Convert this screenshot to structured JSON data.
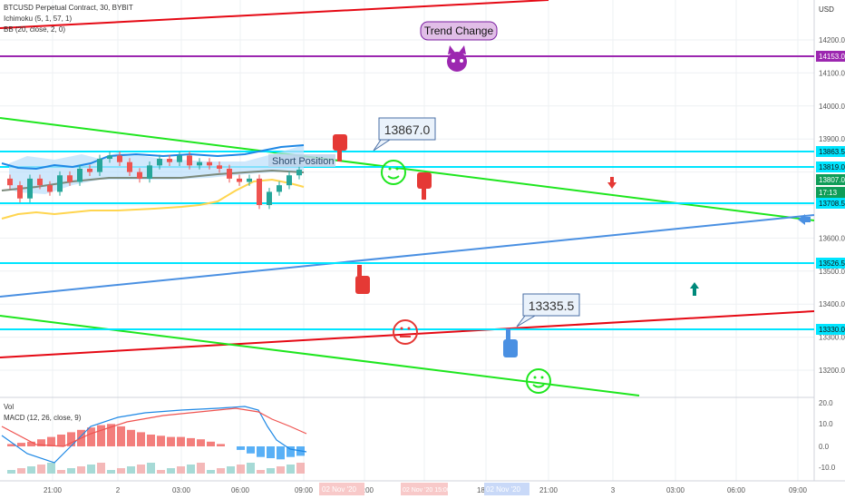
{
  "header": {
    "symbol": "BTCUSD Perpetual Contract, 30, BYBIT",
    "ichimoku": "Ichimoku (5, 1, 57, 1)",
    "bb": "BB (20, close, 2, 0)",
    "vol": "Vol",
    "macd": "MACD (12, 26, close, 9)"
  },
  "price_axis": {
    "currency": "USD",
    "ticks": [
      "14200.0",
      "14100.0",
      "14000.0",
      "13900.0",
      "13700.0",
      "13600.0",
      "13500.0",
      "13400.0",
      "13300.0",
      "13200.0"
    ],
    "tags": [
      {
        "label": "14153.0",
        "color": "#9c27b0"
      },
      {
        "label": "13863.5",
        "color": "#00e5ff"
      },
      {
        "label": "13819.0",
        "color": "#00e5ff"
      },
      {
        "label": "13807.0",
        "color": "#0f9d58"
      },
      {
        "label": "17:13",
        "color": "#0f9d58"
      },
      {
        "label": "13708.5",
        "color": "#00e5ff"
      },
      {
        "label": "13526.5",
        "color": "#00e5ff"
      },
      {
        "label": "13330.0",
        "color": "#00e5ff"
      }
    ]
  },
  "macd_axis": {
    "ticks": [
      "20.0",
      "10.0",
      "0.0",
      "-10.0"
    ]
  },
  "time_axis": {
    "ticks": [
      "21:00",
      "2",
      "03:00",
      "06:00",
      "09:00",
      "12:00",
      "15:00",
      "18:00",
      "21:00",
      "3",
      "03:00",
      "06:00",
      "09:00"
    ],
    "highlight_labels": [
      "02 Nov '20",
      "02 Nov '20 15:00",
      "02 Nov '20"
    ]
  },
  "annotations": {
    "trend_change": "Trend Change",
    "short_position": "Short Position",
    "callout_high": "13867.0",
    "callout_low": "13335.5"
  },
  "colors": {
    "up": "#26a69a",
    "down": "#ef5350",
    "level_line": "#00e5ff",
    "purple": "#9c27b0",
    "red_line": "#e50914",
    "green_line": "#1ee61e",
    "blue_line": "#4a90e2"
  },
  "chart_data": {
    "type": "candlestick",
    "price_levels": [
      14153.0,
      13863.5,
      13819.0,
      13708.5,
      13526.5,
      13330.0
    ],
    "last_price": 13807.0,
    "candles_close": [
      13760,
      13720,
      13780,
      13760,
      13740,
      13790,
      13770,
      13810,
      13800,
      13840,
      13850,
      13830,
      13800,
      13780,
      13820,
      13840,
      13830,
      13850,
      13820,
      13830,
      13820,
      13810,
      13780,
      13770,
      13780,
      13700,
      13740,
      13760,
      13790,
      13807
    ],
    "macd_histogram": [
      2,
      3,
      4,
      6,
      8,
      10,
      12,
      14,
      16,
      18,
      19,
      17,
      14,
      12,
      10,
      9,
      8,
      8,
      7,
      6,
      4,
      2,
      0,
      -3,
      -6,
      -9,
      -10,
      -11,
      -9,
      -8
    ]
  }
}
